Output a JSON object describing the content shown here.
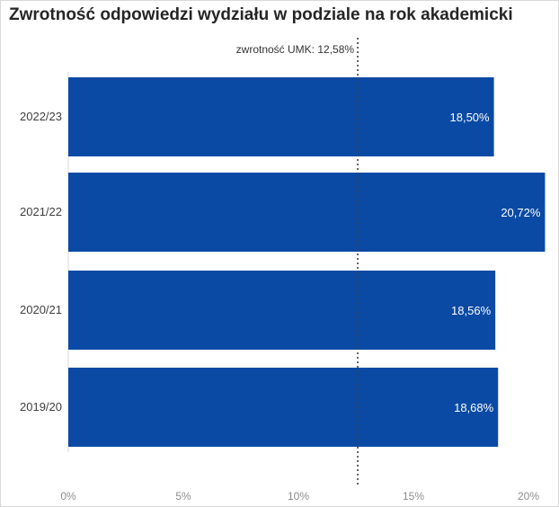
{
  "title": "Zwrotność odpowiedzi wydziału w podziale na rok akademicki",
  "colors": {
    "bar": "#0a4aa5",
    "reference_line": "#404040"
  },
  "chart_data": {
    "type": "bar",
    "orientation": "horizontal",
    "categories": [
      "2022/23",
      "2021/22",
      "2020/21",
      "2019/20"
    ],
    "values": [
      18.5,
      20.72,
      18.56,
      18.68
    ],
    "value_labels": [
      "18,50%",
      "20,72%",
      "18,56%",
      "18,68%"
    ],
    "xlim": [
      0,
      21
    ],
    "xticks": [
      0,
      5,
      10,
      15,
      20
    ],
    "xtick_labels": [
      "0%",
      "5%",
      "10%",
      "15%",
      "20%"
    ],
    "reference_line": {
      "value": 12.58,
      "label": "zwrotność UMK: 12,58%",
      "style": "dotted"
    },
    "grid": false,
    "legend": "none"
  }
}
